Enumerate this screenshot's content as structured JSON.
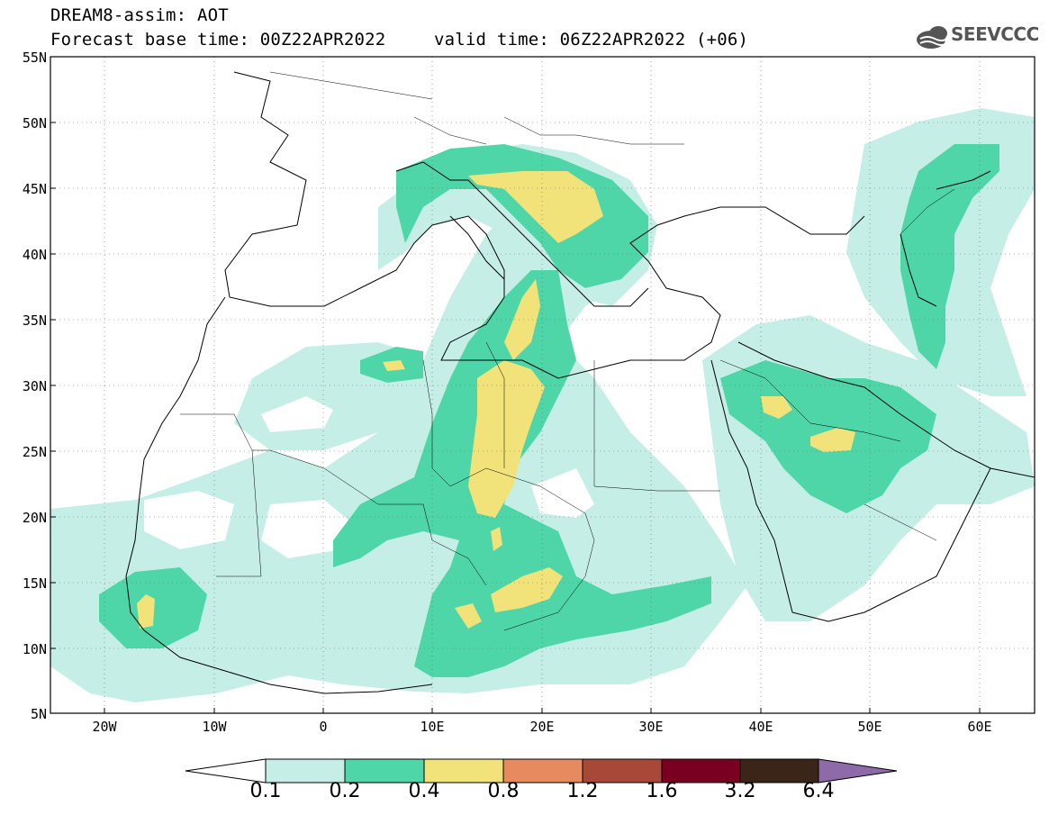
{
  "header": {
    "line1": "DREAM8-assim: AOT",
    "line2": "Forecast base time: 00Z22APR2022",
    "line3": "valid time: 06Z22APR2022 (+06)"
  },
  "logo": {
    "text": "SEEVCCC",
    "icon": "cloud-logo-icon"
  },
  "axes": {
    "lat_labels": [
      "55N",
      "50N",
      "45N",
      "40N",
      "35N",
      "30N",
      "25N",
      "20N",
      "15N",
      "10N",
      "5N"
    ],
    "lon_labels": [
      "20W",
      "10W",
      "0",
      "10E",
      "20E",
      "30E",
      "40E",
      "50E",
      "60E"
    ],
    "lat_range": [
      5,
      55
    ],
    "lon_range": [
      -25,
      65
    ],
    "grid": "dotted"
  },
  "colorbar": {
    "labels": [
      "0.1",
      "0.2",
      "0.4",
      "0.8",
      "1.2",
      "1.6",
      "3.2",
      "6.4"
    ],
    "colors": [
      "#ffffff",
      "#c5efe6",
      "#4fd6a8",
      "#f2e27a",
      "#e88a5f",
      "#a84838",
      "#7a0021",
      "#3a2518",
      "#8e6aa8"
    ],
    "extend": "both"
  },
  "map_data": {
    "variable": "AOT",
    "region": "North Africa, Mediterranean, Middle East"
  }
}
